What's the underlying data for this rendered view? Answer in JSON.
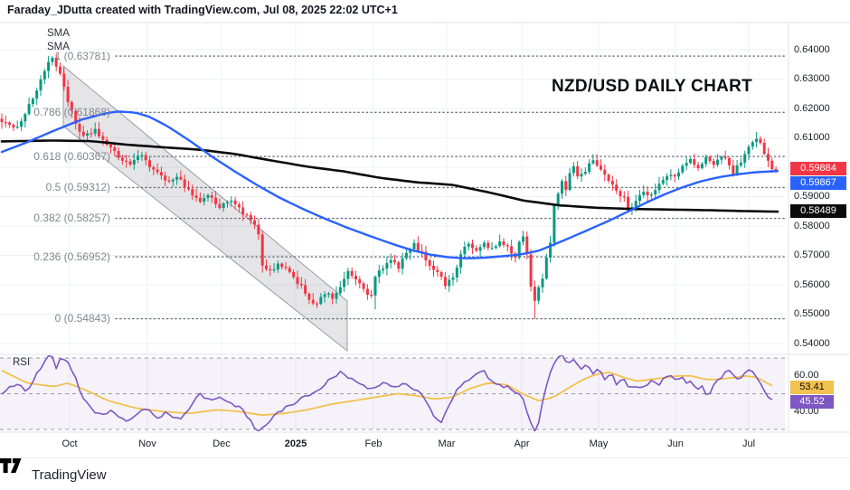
{
  "header": {
    "credit": "Faraday_JDutta created with TradingView.com, Jul 08, 2025 22:02 UTC+1"
  },
  "watermark_title": "NZD/USD DAILY CHART",
  "legend": {
    "sma1": "SMA",
    "sma2": "SMA",
    "rsi": "RSI"
  },
  "footer": {
    "brand": "TradingView"
  },
  "badges": {
    "price_close": "0.59884",
    "sma_fast": "0.59867",
    "sma_slow": "0.58489",
    "rsi_ma": "53.41",
    "rsi": "45.52"
  },
  "colors": {
    "up": "#089981",
    "down": "#F23645",
    "sma_fast": "#2962FF",
    "sma_slow": "#0b0b0b",
    "grid": "#eef0f4",
    "separator": "#e0e3eb",
    "fib_dots": "#6f7280",
    "channel_fill": "rgba(135,138,150,0.22)",
    "channel_edge": "rgba(125,128,140,0.75)",
    "rsi_line": "#7E57C2",
    "rsi_ma": "#F2C14E",
    "rsi_band": "rgba(126,87,194,0.08)",
    "rsi_level": "#787b86",
    "badge_close_bg": "#F23645",
    "badge_sma_bg": "#2962FF",
    "badge_slow_bg": "#0b0b0b",
    "badge_rsi_ma_bg": "#F2C14E",
    "badge_rsi_bg": "#7E57C2"
  },
  "chart_data": {
    "type": "candlestick",
    "title": "NZD/USD DAILY CHART",
    "timeframe": "Daily",
    "price_axis": {
      "min": 0.54,
      "max": 0.64,
      "ticks": [
        "0.64000",
        "0.63000",
        "0.62000",
        "0.61000",
        "0.60000",
        "0.59000",
        "0.58000",
        "0.57000",
        "0.56000",
        "0.55000",
        "0.54000"
      ],
      "tick_values": [
        0.64,
        0.63,
        0.62,
        0.61,
        0.6,
        0.59,
        0.58,
        0.57,
        0.56,
        0.55,
        0.54
      ]
    },
    "x_axis": {
      "labels": [
        "Oct",
        "Nov",
        "Dec",
        "2025",
        "Feb",
        "Mar",
        "Apr",
        "May",
        "Jun",
        "Jul"
      ],
      "positions": [
        77,
        163,
        245,
        327,
        413,
        494,
        577,
        662,
        747,
        828
      ]
    },
    "fibonacci": {
      "levels": [
        {
          "label": "1 (0.63781)",
          "ratio": 1,
          "price": 0.63781
        },
        {
          "label": "0.786 (0.61868)",
          "ratio": 0.786,
          "price": 0.61868
        },
        {
          "label": "0.618 (0.60367)",
          "ratio": 0.618,
          "price": 0.60367
        },
        {
          "label": "0.5 (0.59312)",
          "ratio": 0.5,
          "price": 0.59312
        },
        {
          "label": "0.382 (0.58257)",
          "ratio": 0.382,
          "price": 0.58257
        },
        {
          "label": "0.236 (0.56952)",
          "ratio": 0.236,
          "price": 0.56952
        },
        {
          "label": "0 (0.54843)",
          "ratio": 0,
          "price": 0.54843
        }
      ]
    },
    "channel": {
      "upper": [
        [
          70,
          0.6345
        ],
        [
          384,
          0.5545
        ]
      ],
      "lower": [
        [
          70,
          0.614
        ],
        [
          384,
          0.5375
        ]
      ]
    },
    "last_values": {
      "close": 0.59884,
      "sma_fast": 0.59867,
      "sma_slow": 0.58489,
      "rsi": 45.52,
      "rsi_ma": 53.41
    },
    "candles": {
      "count": 200,
      "last_close": 0.59884,
      "close_waypoints": [
        [
          0,
          0.616
        ],
        [
          3,
          0.6128
        ],
        [
          5,
          0.6162
        ],
        [
          8,
          0.6235
        ],
        [
          11,
          0.633
        ],
        [
          13,
          0.6372
        ],
        [
          15,
          0.632
        ],
        [
          17,
          0.6228
        ],
        [
          19,
          0.6142
        ],
        [
          21,
          0.61
        ],
        [
          24,
          0.6128
        ],
        [
          27,
          0.6075
        ],
        [
          30,
          0.6035
        ],
        [
          33,
          0.6012
        ],
        [
          36,
          0.6042
        ],
        [
          39,
          0.599
        ],
        [
          42,
          0.5952
        ],
        [
          45,
          0.597
        ],
        [
          48,
          0.5922
        ],
        [
          51,
          0.5882
        ],
        [
          53,
          0.5908
        ],
        [
          56,
          0.5862
        ],
        [
          59,
          0.5892
        ],
        [
          62,
          0.5845
        ],
        [
          65,
          0.5802
        ],
        [
          66,
          0.5772
        ],
        [
          67,
          0.5658
        ],
        [
          69,
          0.5646
        ],
        [
          71,
          0.5668
        ],
        [
          73,
          0.565
        ],
        [
          75,
          0.5625
        ],
        [
          77,
          0.5596
        ],
        [
          79,
          0.5552
        ],
        [
          81,
          0.5532
        ],
        [
          83,
          0.557
        ],
        [
          85,
          0.5556
        ],
        [
          87,
          0.5596
        ],
        [
          89,
          0.564
        ],
        [
          91,
          0.562
        ],
        [
          93,
          0.5582
        ],
        [
          95,
          0.5558
        ],
        [
          96,
          0.5628
        ],
        [
          98,
          0.5656
        ],
        [
          100,
          0.5682
        ],
        [
          102,
          0.5662
        ],
        [
          104,
          0.5706
        ],
        [
          106,
          0.5736
        ],
        [
          108,
          0.5706
        ],
        [
          110,
          0.5668
        ],
        [
          112,
          0.5646
        ],
        [
          114,
          0.56
        ],
        [
          116,
          0.5626
        ],
        [
          118,
          0.5706
        ],
        [
          120,
          0.574
        ],
        [
          122,
          0.5714
        ],
        [
          124,
          0.5742
        ],
        [
          126,
          0.572
        ],
        [
          128,
          0.5746
        ],
        [
          130,
          0.5724
        ],
        [
          132,
          0.5694
        ],
        [
          133,
          0.5746
        ],
        [
          134,
          0.577
        ],
        [
          135,
          0.57
        ],
        [
          136,
          0.5592
        ],
        [
          137,
          0.5552
        ],
        [
          138,
          0.5586
        ],
        [
          139,
          0.5626
        ],
        [
          140,
          0.5696
        ],
        [
          141,
          0.5746
        ],
        [
          142,
          0.5866
        ],
        [
          143,
          0.5906
        ],
        [
          144,
          0.5946
        ],
        [
          145,
          0.5926
        ],
        [
          146,
          0.5986
        ],
        [
          147,
          0.6006
        ],
        [
          148,
          0.5966
        ],
        [
          150,
          0.5992
        ],
        [
          152,
          0.6028
        ],
        [
          154,
          0.5992
        ],
        [
          156,
          0.5952
        ],
        [
          158,
          0.5922
        ],
        [
          160,
          0.5892
        ],
        [
          161,
          0.5848
        ],
        [
          163,
          0.5892
        ],
        [
          165,
          0.5922
        ],
        [
          167,
          0.5902
        ],
        [
          169,
          0.5942
        ],
        [
          171,
          0.5968
        ],
        [
          173,
          0.5972
        ],
        [
          175,
          0.6002
        ],
        [
          177,
          0.6022
        ],
        [
          179,
          0.5992
        ],
        [
          181,
          0.6038
        ],
        [
          183,
          0.6012
        ],
        [
          185,
          0.6042
        ],
        [
          187,
          0.6008
        ],
        [
          188,
          0.5978
        ],
        [
          190,
          0.6022
        ],
        [
          192,
          0.6068
        ],
        [
          194,
          0.6095
        ],
        [
          195,
          0.6082
        ],
        [
          196,
          0.6048
        ],
        [
          197,
          0.6022
        ],
        [
          198,
          0.6
        ],
        [
          199,
          0.59884
        ]
      ],
      "spikes": [
        {
          "d": 13,
          "high": 0.6379
        },
        {
          "d": 96,
          "low": 0.5516
        },
        {
          "d": 137,
          "low": 0.54843
        },
        {
          "d": 194,
          "high": 0.612
        }
      ]
    },
    "sma_fast_points": [
      [
        2,
        0.6052
      ],
      [
        30,
        0.6085
      ],
      [
        60,
        0.6125
      ],
      [
        90,
        0.6162
      ],
      [
        115,
        0.6182
      ],
      [
        130,
        0.619
      ],
      [
        150,
        0.6186
      ],
      [
        165,
        0.6172
      ],
      [
        185,
        0.614
      ],
      [
        210,
        0.609
      ],
      [
        235,
        0.6035
      ],
      [
        260,
        0.5985
      ],
      [
        285,
        0.5938
      ],
      [
        310,
        0.5895
      ],
      [
        335,
        0.5858
      ],
      [
        360,
        0.5824
      ],
      [
        385,
        0.5793
      ],
      [
        410,
        0.5765
      ],
      [
        435,
        0.5738
      ],
      [
        455,
        0.5718
      ],
      [
        475,
        0.5703
      ],
      [
        495,
        0.5694
      ],
      [
        515,
        0.569
      ],
      [
        535,
        0.5692
      ],
      [
        555,
        0.5697
      ],
      [
        575,
        0.5703
      ],
      [
        595,
        0.5715
      ],
      [
        615,
        0.574
      ],
      [
        635,
        0.5766
      ],
      [
        655,
        0.5793
      ],
      [
        675,
        0.582
      ],
      [
        695,
        0.585
      ],
      [
        715,
        0.588
      ],
      [
        735,
        0.5908
      ],
      [
        755,
        0.5932
      ],
      [
        775,
        0.5952
      ],
      [
        795,
        0.5966
      ],
      [
        815,
        0.5976
      ],
      [
        835,
        0.5983
      ],
      [
        860,
        0.5987
      ]
    ],
    "sma_slow_points": [
      [
        2,
        0.6088
      ],
      [
        60,
        0.6091
      ],
      [
        100,
        0.6089
      ],
      [
        140,
        0.6077
      ],
      [
        180,
        0.6068
      ],
      [
        220,
        0.606
      ],
      [
        260,
        0.6045
      ],
      [
        300,
        0.6023
      ],
      [
        340,
        0.6002
      ],
      [
        380,
        0.5986
      ],
      [
        420,
        0.5964
      ],
      [
        460,
        0.5949
      ],
      [
        500,
        0.594
      ],
      [
        540,
        0.5915
      ],
      [
        580,
        0.5886
      ],
      [
        620,
        0.587
      ],
      [
        660,
        0.5862
      ],
      [
        700,
        0.5858
      ],
      [
        740,
        0.5856
      ],
      [
        780,
        0.5854
      ],
      [
        820,
        0.5851
      ],
      [
        860,
        0.5849
      ]
    ],
    "rsi": {
      "levels": [
        70,
        50,
        30
      ],
      "ticks": [
        {
          "label": "60.00",
          "value": 60
        },
        {
          "label": "40.00",
          "value": 40
        }
      ],
      "line_waypoints": [
        [
          2,
          50
        ],
        [
          15,
          55
        ],
        [
          30,
          52
        ],
        [
          45,
          65
        ],
        [
          52,
          70
        ],
        [
          57,
          73
        ],
        [
          62,
          65
        ],
        [
          68,
          71
        ],
        [
          75,
          67
        ],
        [
          82,
          62
        ],
        [
          90,
          48
        ],
        [
          100,
          42
        ],
        [
          112,
          38
        ],
        [
          125,
          41
        ],
        [
          138,
          35
        ],
        [
          150,
          38
        ],
        [
          163,
          43
        ],
        [
          172,
          36
        ],
        [
          185,
          40
        ],
        [
          198,
          35
        ],
        [
          210,
          43
        ],
        [
          220,
          50
        ],
        [
          232,
          46
        ],
        [
          244,
          49
        ],
        [
          258,
          44
        ],
        [
          270,
          40
        ],
        [
          280,
          32
        ],
        [
          286,
          28
        ],
        [
          292,
          31
        ],
        [
          300,
          36
        ],
        [
          312,
          41
        ],
        [
          325,
          45
        ],
        [
          338,
          48
        ],
        [
          352,
          51
        ],
        [
          362,
          58
        ],
        [
          375,
          62
        ],
        [
          388,
          58
        ],
        [
          400,
          55
        ],
        [
          412,
          52
        ],
        [
          424,
          57
        ],
        [
          436,
          54
        ],
        [
          448,
          57
        ],
        [
          460,
          52
        ],
        [
          470,
          48
        ],
        [
          480,
          38
        ],
        [
          487,
          33
        ],
        [
          495,
          43
        ],
        [
          505,
          52
        ],
        [
          515,
          56
        ],
        [
          525,
          61
        ],
        [
          533,
          64
        ],
        [
          541,
          58
        ],
        [
          552,
          56
        ],
        [
          563,
          53
        ],
        [
          572,
          50
        ],
        [
          580,
          45
        ],
        [
          586,
          36
        ],
        [
          592,
          27
        ],
        [
          598,
          40
        ],
        [
          604,
          55
        ],
        [
          610,
          64
        ],
        [
          616,
          69
        ],
        [
          622,
          73
        ],
        [
          628,
          67
        ],
        [
          634,
          70
        ],
        [
          641,
          64
        ],
        [
          648,
          67
        ],
        [
          655,
          61
        ],
        [
          662,
          64
        ],
        [
          669,
          58
        ],
        [
          676,
          61
        ],
        [
          683,
          55
        ],
        [
          690,
          58
        ],
        [
          697,
          52
        ],
        [
          704,
          55
        ],
        [
          710,
          52
        ],
        [
          716,
          56
        ],
        [
          722,
          59
        ],
        [
          728,
          55
        ],
        [
          734,
          58
        ],
        [
          740,
          61
        ],
        [
          746,
          57
        ],
        [
          752,
          60
        ],
        [
          758,
          56
        ],
        [
          764,
          58
        ],
        [
          770,
          52
        ],
        [
          776,
          55
        ],
        [
          782,
          49
        ],
        [
          788,
          53
        ],
        [
          794,
          57
        ],
        [
          800,
          60
        ],
        [
          806,
          64
        ],
        [
          812,
          61
        ],
        [
          818,
          58
        ],
        [
          824,
          61
        ],
        [
          830,
          64
        ],
        [
          836,
          60
        ],
        [
          842,
          55
        ],
        [
          848,
          48
        ],
        [
          853,
          46
        ],
        [
          858,
          45.52
        ]
      ],
      "ma_waypoints": [
        [
          2,
          63
        ],
        [
          30,
          56
        ],
        [
          60,
          54
        ],
        [
          75,
          56
        ],
        [
          95,
          52
        ],
        [
          120,
          46
        ],
        [
          150,
          42
        ],
        [
          180,
          40
        ],
        [
          210,
          39
        ],
        [
          240,
          41
        ],
        [
          265,
          40
        ],
        [
          290,
          38
        ],
        [
          315,
          39
        ],
        [
          340,
          41
        ],
        [
          365,
          44
        ],
        [
          390,
          46
        ],
        [
          415,
          48
        ],
        [
          440,
          50
        ],
        [
          460,
          49
        ],
        [
          480,
          47
        ],
        [
          500,
          48
        ],
        [
          520,
          53
        ],
        [
          540,
          56
        ],
        [
          560,
          55
        ],
        [
          578,
          50
        ],
        [
          595,
          46
        ],
        [
          612,
          48
        ],
        [
          628,
          53
        ],
        [
          645,
          58
        ],
        [
          660,
          61
        ],
        [
          675,
          62
        ],
        [
          690,
          59
        ],
        [
          705,
          57
        ],
        [
          720,
          58
        ],
        [
          735,
          59
        ],
        [
          750,
          60
        ],
        [
          765,
          60
        ],
        [
          780,
          58
        ],
        [
          795,
          58
        ],
        [
          810,
          59
        ],
        [
          825,
          60
        ],
        [
          838,
          59
        ],
        [
          848,
          56
        ],
        [
          858,
          53.41
        ]
      ]
    }
  }
}
